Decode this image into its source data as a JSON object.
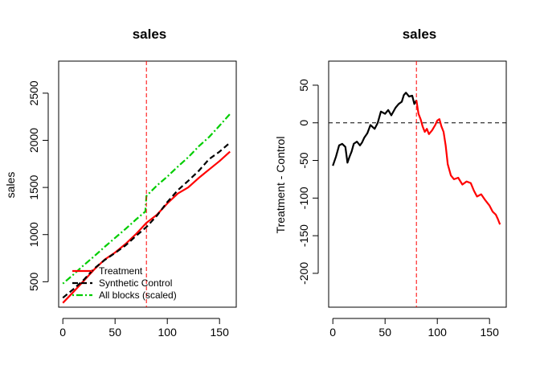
{
  "colors": {
    "treatment": "#ff0000",
    "synthetic": "#000000",
    "all_blocks": "#00cd00",
    "vline": "#ff0000",
    "axis": "#000000"
  },
  "chart_data": [
    {
      "type": "line",
      "title": "sales",
      "xlabel": "",
      "ylabel": "sales",
      "xlim": [
        -4,
        166
      ],
      "ylim": [
        230,
        2840
      ],
      "xticks": [
        0,
        50,
        100,
        150
      ],
      "yticks": [
        500,
        1000,
        1500,
        2000,
        2500
      ],
      "vline": 80,
      "legend_position": "bottom-left",
      "series": [
        {
          "name": "Treatment",
          "style": "solid",
          "color": "#ff0000",
          "x": [
            0,
            10,
            20,
            30,
            40,
            50,
            60,
            70,
            80,
            90,
            100,
            110,
            120,
            130,
            140,
            150,
            160
          ],
          "y": [
            275,
            390,
            510,
            630,
            735,
            810,
            900,
            1005,
            1125,
            1210,
            1330,
            1435,
            1500,
            1600,
            1690,
            1780,
            1880
          ]
        },
        {
          "name": "Synthetic Control",
          "style": "dashed",
          "color": "#000000",
          "x": [
            0,
            10,
            20,
            30,
            40,
            50,
            60,
            70,
            80,
            90,
            100,
            110,
            120,
            130,
            140,
            150,
            160
          ],
          "y": [
            330,
            420,
            520,
            640,
            730,
            805,
            885,
            985,
            1080,
            1200,
            1345,
            1470,
            1570,
            1675,
            1800,
            1880,
            1975
          ]
        },
        {
          "name": "All blocks (scaled)",
          "style": "dotdash",
          "color": "#00cd00",
          "x": [
            0,
            10,
            20,
            30,
            40,
            50,
            60,
            70,
            79,
            80,
            90,
            100,
            110,
            120,
            130,
            140,
            150,
            160
          ],
          "y": [
            480,
            575,
            675,
            770,
            870,
            965,
            1060,
            1160,
            1245,
            1410,
            1520,
            1615,
            1720,
            1820,
            1935,
            2035,
            2155,
            2280
          ]
        }
      ],
      "legend": [
        "Treatment",
        "Synthetic Control",
        "All blocks (scaled)"
      ]
    },
    {
      "type": "line",
      "title": "sales",
      "xlabel": "",
      "ylabel": "Treatment - Control",
      "xlim": [
        -4,
        166
      ],
      "ylim": [
        -245,
        82
      ],
      "xticks": [
        0,
        50,
        100,
        150
      ],
      "yticks": [
        -200,
        -150,
        -100,
        -50,
        0,
        50
      ],
      "vline": 80,
      "hline": 0,
      "series": [
        {
          "name": "",
          "style": "solid",
          "color": "#000000",
          "x": [
            0,
            3,
            6,
            9,
            12,
            14,
            16,
            18,
            20,
            23,
            26,
            28,
            30,
            33,
            36,
            40,
            43,
            46,
            50,
            53,
            56,
            60,
            63,
            66,
            68,
            70,
            73,
            76,
            78,
            80
          ],
          "y": [
            -57,
            -45,
            -30,
            -28,
            -32,
            -53,
            -45,
            -38,
            -28,
            -25,
            -30,
            -26,
            -20,
            -14,
            -3,
            -8,
            0,
            15,
            12,
            17,
            10,
            20,
            25,
            28,
            37,
            40,
            35,
            36,
            25,
            30
          ]
        },
        {
          "name": "",
          "style": "solid",
          "color": "#ff0000",
          "x": [
            80,
            82,
            84,
            86,
            88,
            90,
            92,
            95,
            98,
            100,
            102,
            104,
            106,
            108,
            110,
            113,
            116,
            120,
            124,
            128,
            132,
            135,
            138,
            142,
            146,
            150,
            153,
            156,
            158,
            160
          ],
          "y": [
            30,
            12,
            5,
            -5,
            -12,
            -8,
            -15,
            -10,
            -3,
            3,
            5,
            -5,
            -12,
            -30,
            -55,
            -70,
            -75,
            -73,
            -82,
            -78,
            -80,
            -90,
            -98,
            -95,
            -103,
            -110,
            -118,
            -122,
            -128,
            -135
          ]
        }
      ]
    }
  ]
}
